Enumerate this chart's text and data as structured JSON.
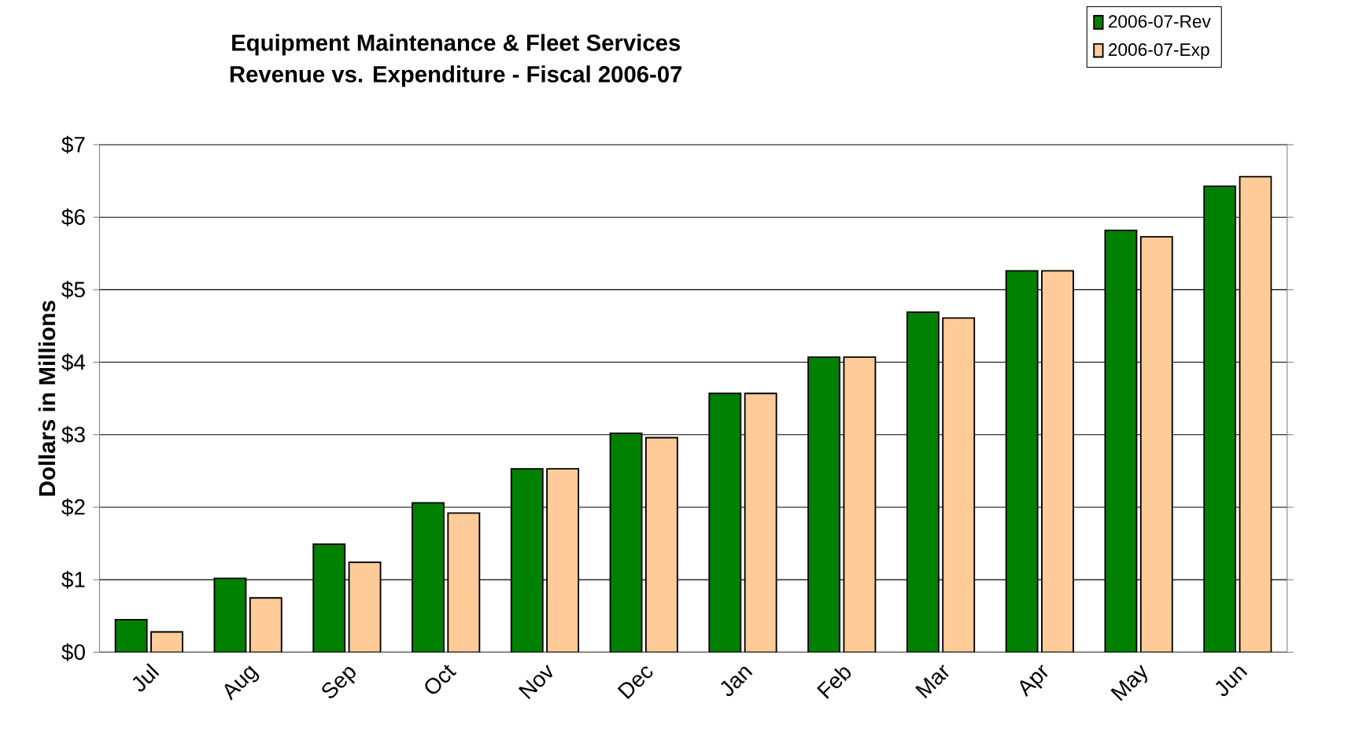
{
  "chart_data": {
    "type": "bar",
    "title": "Equipment Maintenance & Fleet Services\nRevenue vs. Expenditure - Fiscal 2006-07",
    "ylabel": "Dollars in Millions",
    "categories": [
      "Jul",
      "Aug",
      "Sep",
      "Oct",
      "Nov",
      "Dec",
      "Jan",
      "Feb",
      "Mar",
      "Apr",
      "May",
      "Jun"
    ],
    "series": [
      {
        "name": "2006-07-Rev",
        "color": "#008000",
        "values": [
          0.45,
          1.02,
          1.49,
          2.06,
          2.53,
          3.02,
          3.57,
          4.07,
          4.69,
          5.26,
          5.82,
          6.43
        ]
      },
      {
        "name": "2006-07-Exp",
        "color": "#ffcc99",
        "values": [
          0.28,
          0.75,
          1.24,
          1.92,
          2.53,
          2.96,
          3.57,
          4.07,
          4.61,
          5.26,
          5.73,
          6.56
        ]
      }
    ],
    "ylim": [
      0,
      7
    ],
    "yticks": [
      {
        "value": 0,
        "label": "$0"
      },
      {
        "value": 1,
        "label": "$1"
      },
      {
        "value": 2,
        "label": "$2"
      },
      {
        "value": 3,
        "label": "$3"
      },
      {
        "value": 4,
        "label": "$4"
      },
      {
        "value": 5,
        "label": "$5"
      },
      {
        "value": 6,
        "label": "$6"
      },
      {
        "value": 7,
        "label": "$7"
      }
    ],
    "grid": "y",
    "legend": "top right"
  }
}
